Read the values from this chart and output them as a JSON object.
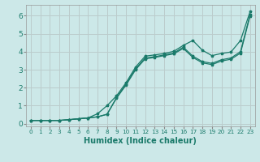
{
  "xlabel": "Humidex (Indice chaleur)",
  "bg_color": "#cce8e8",
  "grid_color": "#bbcccc",
  "line_color": "#1a7a6a",
  "xlim": [
    -0.5,
    23.5
  ],
  "ylim": [
    -0.15,
    6.6
  ],
  "xticks": [
    0,
    1,
    2,
    3,
    4,
    5,
    6,
    7,
    8,
    9,
    10,
    11,
    12,
    13,
    14,
    15,
    16,
    17,
    18,
    19,
    20,
    21,
    22,
    23
  ],
  "yticks": [
    0,
    1,
    2,
    3,
    4,
    5,
    6
  ],
  "line1_x": [
    0,
    1,
    2,
    3,
    4,
    5,
    6,
    7,
    8,
    9,
    10,
    11,
    12,
    13,
    14,
    15,
    16,
    17,
    18,
    19,
    20,
    21,
    22,
    23
  ],
  "line1_y": [
    0.18,
    0.18,
    0.18,
    0.18,
    0.22,
    0.27,
    0.32,
    0.55,
    1.0,
    1.55,
    2.28,
    3.15,
    3.75,
    3.82,
    3.9,
    4.02,
    4.35,
    4.62,
    4.08,
    3.78,
    3.9,
    3.98,
    4.62,
    6.22
  ],
  "line2_x": [
    0,
    1,
    2,
    3,
    4,
    5,
    6,
    7,
    8,
    9,
    10,
    11,
    12,
    13,
    14,
    15,
    16,
    17,
    18,
    19,
    20,
    21,
    22,
    23
  ],
  "line2_y": [
    0.18,
    0.18,
    0.18,
    0.18,
    0.22,
    0.27,
    0.32,
    0.38,
    0.52,
    1.45,
    2.2,
    3.05,
    3.65,
    3.72,
    3.82,
    3.92,
    4.25,
    3.75,
    3.45,
    3.35,
    3.55,
    3.65,
    4.0,
    6.05
  ],
  "line3_x": [
    0,
    1,
    2,
    3,
    4,
    5,
    6,
    7,
    8,
    9,
    10,
    11,
    12,
    13,
    14,
    15,
    16,
    17,
    18,
    19,
    20,
    21,
    22,
    23
  ],
  "line3_y": [
    0.18,
    0.18,
    0.18,
    0.18,
    0.22,
    0.27,
    0.32,
    0.38,
    0.52,
    1.42,
    2.15,
    3.0,
    3.6,
    3.68,
    3.78,
    3.88,
    4.18,
    3.68,
    3.38,
    3.28,
    3.48,
    3.58,
    3.92,
    5.98
  ]
}
